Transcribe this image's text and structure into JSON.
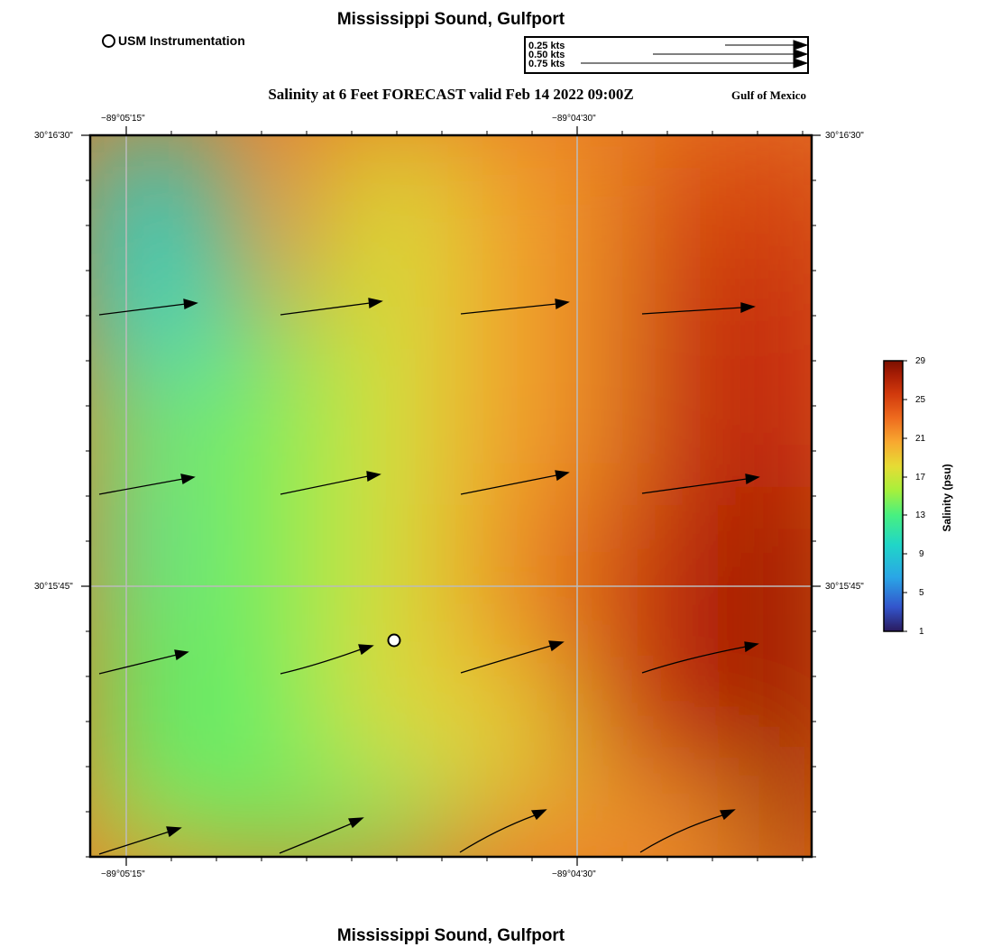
{
  "header": {
    "title": "Mississippi Sound, Gulfport",
    "subtitle": "Salinity at 6 Feet FORECAST valid Feb 14 2022 09:00Z",
    "region": "Gulf of Mexico",
    "footer_title": "Mississippi Sound, Gulfport"
  },
  "legend": {
    "station_label": "USM Instrumentation",
    "vector_scale": [
      {
        "label": "0.25 kts",
        "kts": 0.25
      },
      {
        "label": "0.50 kts",
        "kts": 0.5
      },
      {
        "label": "0.75 kts",
        "kts": 0.75
      }
    ]
  },
  "map": {
    "lon_labels_top": [
      "−89°05'15\"",
      "−89°04'30\""
    ],
    "lon_labels_bottom": [
      "−89°05'15\"",
      "−89°04'30\""
    ],
    "lat_labels_left": [
      "30°16'30\"",
      "30°15'45\""
    ],
    "lat_labels_right": [
      "30°16'30\"",
      "30°15'45\""
    ],
    "station_marker": "usm-station-circle",
    "arrow_color": "#000000",
    "grid_color": "#bbbbbb"
  },
  "colorbar": {
    "label": "Salinity (psu)",
    "ticks": [
      "29",
      "25",
      "21",
      "17",
      "13",
      "9",
      "5",
      "1"
    ],
    "min": 1,
    "max": 29,
    "colors": [
      "#2a1a5e",
      "#3355cc",
      "#2aa6e6",
      "#20d6c8",
      "#48f080",
      "#a6f03c",
      "#e6dc34",
      "#f8a830",
      "#ee6a1e",
      "#d0380c",
      "#a61c04",
      "#7a1000"
    ]
  }
}
